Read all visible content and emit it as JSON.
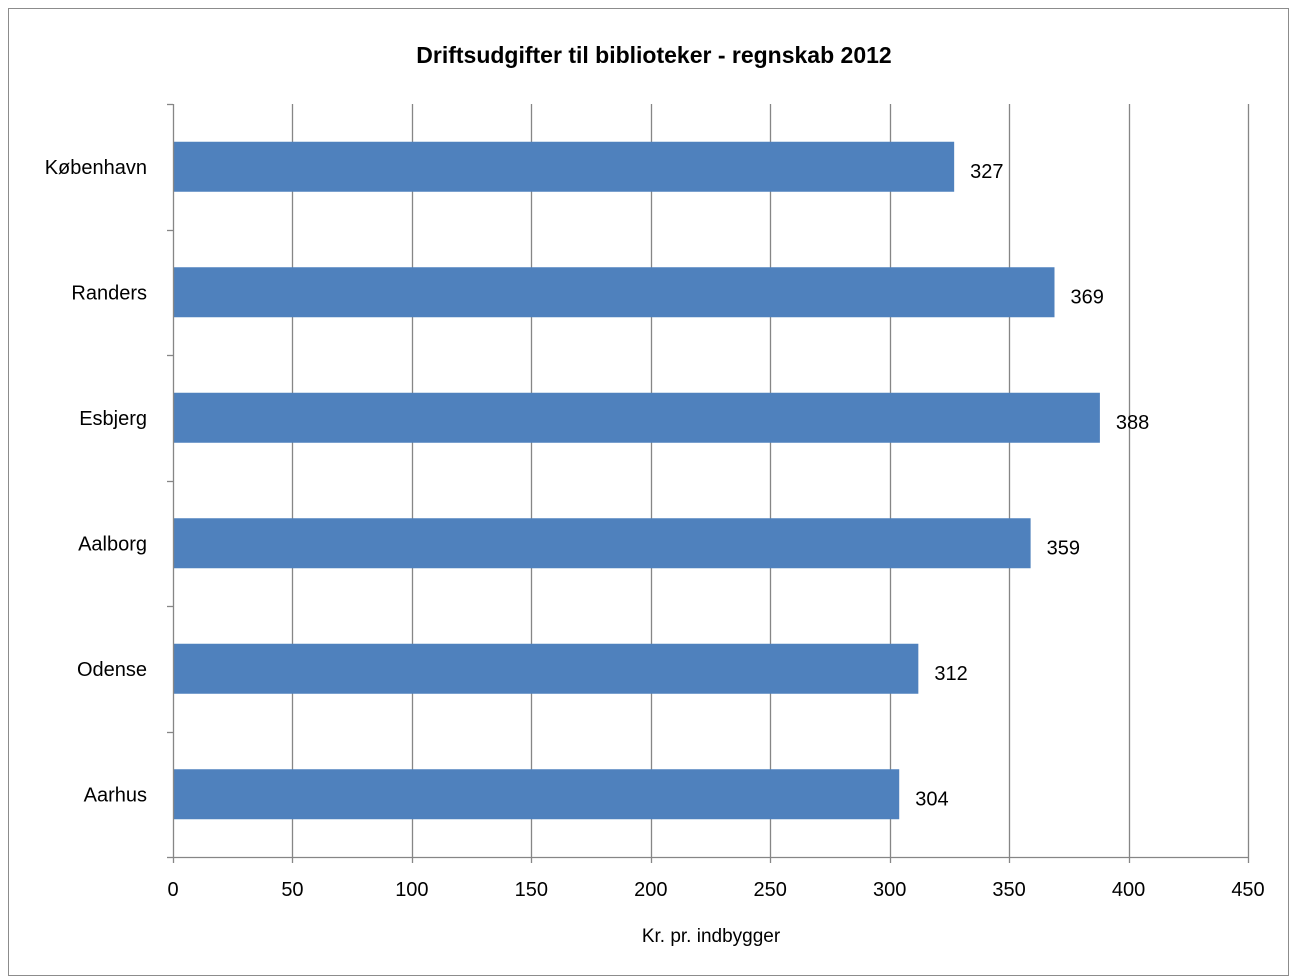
{
  "chart_data": {
    "type": "bar",
    "orientation": "horizontal",
    "title": "Driftsudgifter til biblioteker - regnskab 2012",
    "xlabel": "Kr. pr. indbygger",
    "ylabel": "",
    "categories": [
      "København",
      "Randers",
      "Esbjerg",
      "Aalborg",
      "Odense",
      "Aarhus"
    ],
    "values": [
      327,
      369,
      388,
      359,
      312,
      304
    ],
    "data_labels": [
      "327",
      "369",
      "388",
      "359",
      "312",
      "304"
    ],
    "xlim": [
      0,
      450
    ],
    "x_ticks": [
      0,
      50,
      100,
      150,
      200,
      250,
      300,
      350,
      400,
      450
    ],
    "x_tick_labels": [
      "0",
      "50",
      "100",
      "150",
      "200",
      "250",
      "300",
      "350",
      "400",
      "450"
    ],
    "grid": "vertical",
    "legend": "none",
    "colors": {
      "bar": "#4f81bd",
      "gridline": "#868686",
      "axis": "#868686",
      "frame": "#8c8c8c",
      "text": "#000000"
    }
  }
}
